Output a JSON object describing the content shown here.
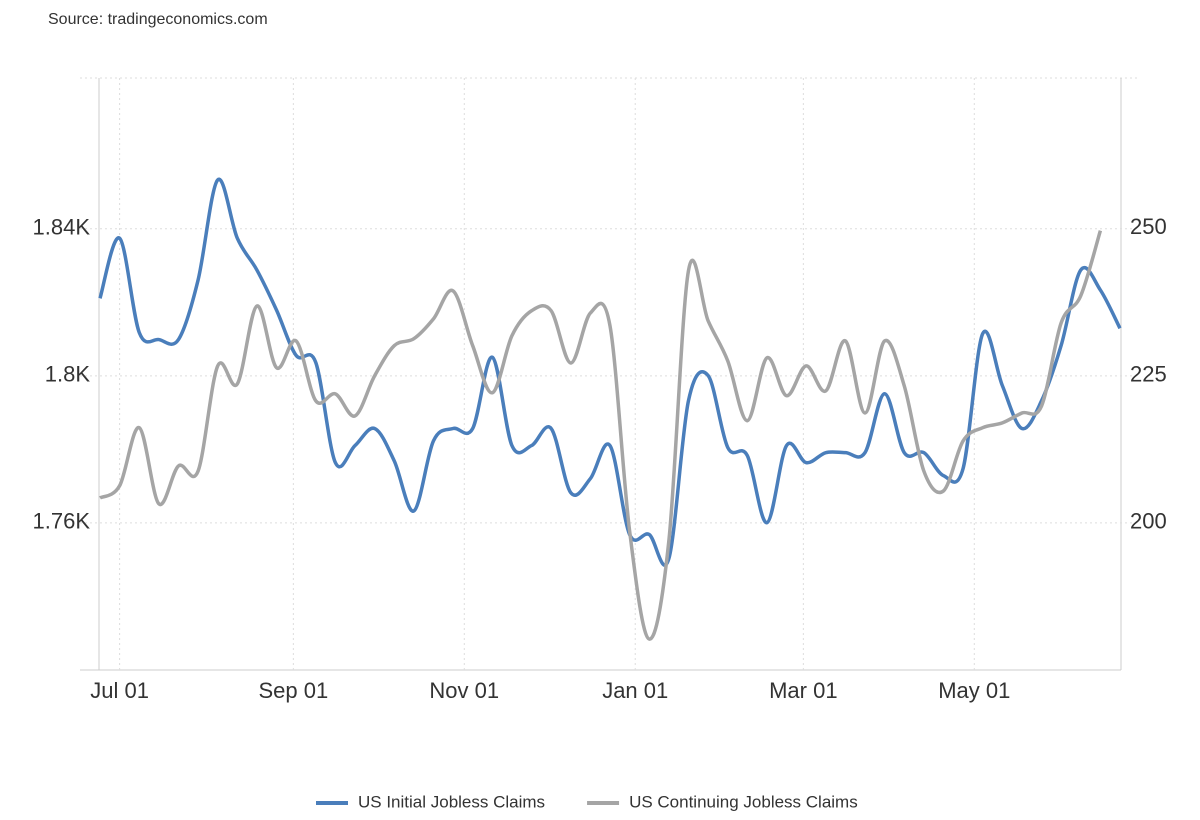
{
  "chart_data": {
    "type": "line",
    "source": "Source: tradingeconomics.com",
    "xlim": [
      0,
      52
    ],
    "xticks": [
      {
        "value": 1,
        "label": "Jul 01"
      },
      {
        "value": 9.857,
        "label": "Sep 01"
      },
      {
        "value": 18.571,
        "label": "Nov 01"
      },
      {
        "value": 27.286,
        "label": "Jan 01"
      },
      {
        "value": 35.857,
        "label": "Mar 01"
      },
      {
        "value": 44.571,
        "label": "May 01"
      }
    ],
    "ylim": [
      1720,
      1881
    ],
    "yticks": [
      {
        "value": 1760,
        "label": "1.76K"
      },
      {
        "value": 1800,
        "label": "1.8K"
      },
      {
        "value": 1840,
        "label": "1.84K"
      }
    ],
    "y2lim": [
      175,
      275.5
    ],
    "y2ticks": [
      200,
      225,
      250
    ],
    "grid": true,
    "legend": "bottom",
    "series": [
      {
        "name": "US Initial Jobless Claims",
        "color": "#4a7ebb",
        "axis": "y2",
        "values": [
          238.1,
          248.3,
          232.3,
          231.1,
          231.1,
          241.2,
          258.2,
          248.3,
          242.9,
          236.1,
          228.4,
          227.2,
          210.2,
          213.1,
          216.0,
          210.5,
          202.0,
          213.9,
          216.0,
          216.0,
          228.1,
          213.1,
          213.1,
          216.0,
          205.1,
          207.5,
          213.1,
          198.0,
          198.0,
          193.9,
          220.7,
          225.0,
          212.8,
          211.4,
          200.0,
          213.1,
          210.2,
          211.9,
          211.9,
          211.9,
          221.9,
          211.9,
          211.9,
          208.0,
          209.2,
          232.1,
          223.3,
          216.0,
          220.7,
          230.1,
          242.9,
          239.5,
          233.0
        ]
      },
      {
        "name": "US Continuing Jobless Claims",
        "color": "#a5a5a5",
        "axis": "y",
        "values": [
          1766.8,
          1770.1,
          1785.9,
          1765.2,
          1775.5,
          1774.1,
          1802.7,
          1797.8,
          1819.0,
          1802.2,
          1809.5,
          1793.2,
          1795.1,
          1789.1,
          1800.0,
          1808.2,
          1810.1,
          1815.5,
          1823.1,
          1808.2,
          1795.4,
          1810.9,
          1817.7,
          1817.7,
          1803.5,
          1817.1,
          1813.6,
          1757.8,
          1728.4,
          1755.1,
          1828.6,
          1815.0,
          1804.1,
          1787.8,
          1804.9,
          1794.6,
          1802.7,
          1795.9,
          1809.5,
          1789.9,
          1809.5,
          1797.3,
          1774.1,
          1768.7,
          1782.3,
          1785.9,
          1787.2,
          1789.9,
          1791.8,
          1814.4,
          1821.8,
          1839.5,
          null
        ]
      }
    ]
  }
}
